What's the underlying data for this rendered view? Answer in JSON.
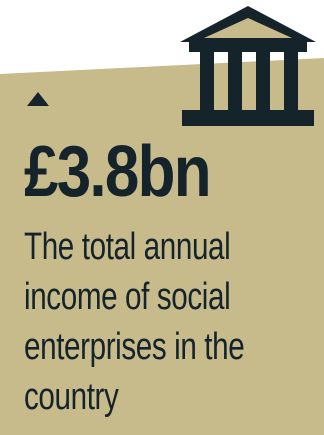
{
  "colors": {
    "background": "#c7bb8c",
    "ink": "#15232b",
    "page": "#ffffff"
  },
  "icons": {
    "top": "bank-icon",
    "trend": "arrow-up-icon"
  },
  "stat": {
    "value": "£3.8bn",
    "description_lines": [
      "The total annual",
      "income of social",
      "enterprises in the",
      "country"
    ]
  }
}
